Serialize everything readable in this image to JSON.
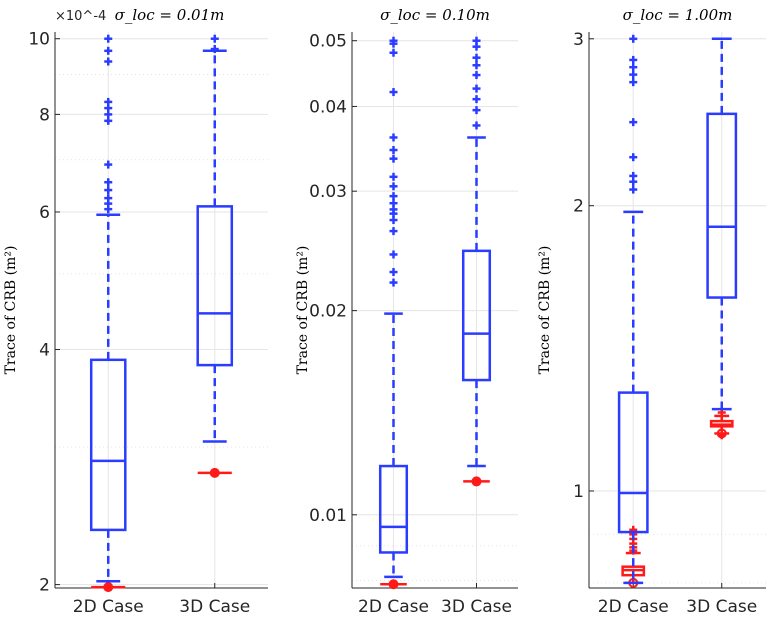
{
  "colors": {
    "blue": "#2a3cff",
    "red": "#ff1a1a",
    "grid": "#e6e6e6",
    "axis": "#262626"
  },
  "chart_data": [
    {
      "type": "box",
      "title": "σ_loc = 0.01m",
      "ylabel": "Trace of CRB (m²)",
      "yscale": "log",
      "exponent_label": "×10^-4",
      "ylim": [
        1.98,
        10.2
      ],
      "yticks": [
        2,
        4,
        6,
        8,
        10
      ],
      "ytick_labels": [
        "2",
        "4",
        "6",
        "8",
        "10"
      ],
      "categories": [
        "2D Case",
        "3D Case"
      ],
      "series": [
        {
          "category": "2D Case",
          "color": "red",
          "kind": "point",
          "median": 1.985
        },
        {
          "category": "2D Case",
          "color": "blue",
          "kind": "box",
          "whisker_low": 2.02,
          "q1": 2.35,
          "median": 2.88,
          "q3": 3.88,
          "whisker_high": 5.95,
          "outliers": [
            6.05,
            6.15,
            6.25,
            6.4,
            6.55,
            6.9,
            7.85,
            8.0,
            8.15,
            8.3,
            9.35,
            9.65,
            10.0
          ]
        },
        {
          "category": "3D Case",
          "color": "red",
          "kind": "point",
          "median": 2.78
        },
        {
          "category": "3D Case",
          "color": "blue",
          "kind": "box",
          "whisker_low": 3.05,
          "q1": 3.82,
          "median": 4.45,
          "q3": 6.1,
          "whisker_high": 9.65,
          "outliers": [
            9.7,
            10.0
          ]
        }
      ]
    },
    {
      "type": "box",
      "title": "σ_loc = 0.10m",
      "ylabel": "Trace of CRB (m²)",
      "yscale": "log",
      "ylim": [
        0.0078,
        0.0515
      ],
      "yticks": [
        0.01,
        0.02,
        0.03,
        0.04,
        0.05
      ],
      "ytick_labels": [
        "0.01",
        "0.02",
        "0.03",
        "0.04",
        "0.05"
      ],
      "categories": [
        "2D Case",
        "3D Case"
      ],
      "series": [
        {
          "category": "2D Case",
          "color": "red",
          "kind": "point",
          "median": 0.0079
        },
        {
          "category": "2D Case",
          "color": "blue",
          "kind": "box",
          "whisker_low": 0.0081,
          "q1": 0.0088,
          "median": 0.0096,
          "q3": 0.0118,
          "whisker_high": 0.0198,
          "outliers": [
            0.022,
            0.0228,
            0.0242,
            0.0262,
            0.0272,
            0.0278,
            0.0282,
            0.0288,
            0.0295,
            0.0305,
            0.0315,
            0.0335,
            0.0345,
            0.036,
            0.042,
            0.048,
            0.0495,
            0.05
          ]
        },
        {
          "category": "3D Case",
          "color": "red",
          "kind": "point",
          "median": 0.0112
        },
        {
          "category": "3D Case",
          "color": "blue",
          "kind": "box",
          "whisker_low": 0.0118,
          "q1": 0.0158,
          "median": 0.0185,
          "q3": 0.0245,
          "whisker_high": 0.036,
          "outliers": [
            0.0375,
            0.0395,
            0.041,
            0.0425,
            0.0445,
            0.046,
            0.0472,
            0.049,
            0.05
          ]
        }
      ]
    },
    {
      "type": "box",
      "title": "σ_loc = 1.00m",
      "ylabel": "Trace of CRB (m²)",
      "yscale": "log",
      "ylim": [
        0.79,
        3.05
      ],
      "yticks": [
        1,
        2,
        3
      ],
      "ytick_labels": [
        "1",
        "2",
        "3"
      ],
      "categories": [
        "2D Case",
        "3D Case"
      ],
      "series": [
        {
          "category": "2D Case",
          "color": "red",
          "kind": "box",
          "whisker_low": 0.8,
          "q1": 0.815,
          "median": 0.825,
          "q3": 0.832,
          "whisker_high": 0.86,
          "outliers": [
            0.865,
            0.872,
            0.88,
            0.89,
            0.9,
            0.91
          ]
        },
        {
          "category": "2D Case",
          "color": "blue",
          "kind": "box",
          "whisker_low": 0.8,
          "q1": 0.905,
          "median": 0.995,
          "q3": 1.27,
          "whisker_high": 1.97,
          "outliers": [
            2.08,
            2.12,
            2.15,
            2.25,
            2.45,
            2.7,
            2.75,
            2.8,
            2.85,
            3.0
          ]
        },
        {
          "category": "3D Case",
          "color": "red",
          "kind": "box",
          "whisker_low": 1.15,
          "q1": 1.17,
          "median": 1.175,
          "q3": 1.185,
          "whisker_high": 1.2,
          "outliers": [
            1.145,
            1.21
          ]
        },
        {
          "category": "3D Case",
          "color": "blue",
          "kind": "box",
          "whisker_low": 1.22,
          "q1": 1.6,
          "median": 1.9,
          "q3": 2.5,
          "whisker_high": 3.0,
          "outliers": []
        }
      ]
    }
  ]
}
